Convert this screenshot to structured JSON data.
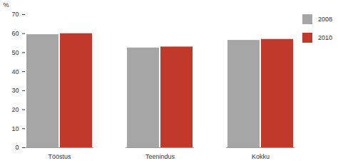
{
  "chart_data": {
    "type": "bar",
    "y_label": "%",
    "categories": [
      "Tööstus",
      "Teenindus",
      "Kokku"
    ],
    "series": [
      {
        "name": "2008",
        "color": "#a6a6a6",
        "values": [
          59.5,
          52.5,
          56.5
        ]
      },
      {
        "name": "2010",
        "color": "#c0392b",
        "values": [
          60,
          53,
          57
        ]
      }
    ],
    "ylim": [
      0,
      70
    ],
    "yticks": [
      0,
      10,
      20,
      30,
      40,
      50,
      60,
      70
    ],
    "grid": false,
    "legend": "right"
  }
}
